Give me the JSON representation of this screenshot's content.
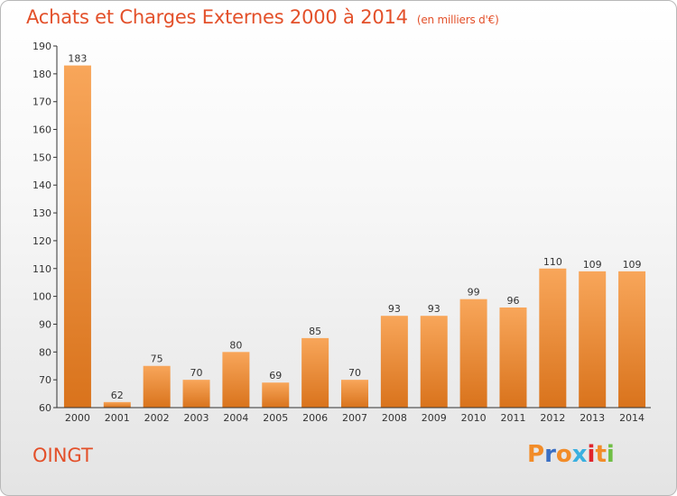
{
  "header": {
    "title": "Achats et Charges Externes 2000 à 2014",
    "unit": "(en milliers d'€)"
  },
  "footer": {
    "commune": "OINGT",
    "logo": [
      "P",
      "r",
      "o",
      "x",
      "i",
      "t",
      "i"
    ]
  },
  "colors": {
    "title": "#e3502a",
    "bar_top": "#f8a65a",
    "bar_bottom": "#d9731c",
    "axis": "#333333",
    "logo": [
      "#f28c28",
      "#3a6fc4",
      "#f28c28",
      "#3ab0e0",
      "#e0242b",
      "#f28c28",
      "#6fbe44"
    ]
  },
  "chart_data": {
    "type": "bar",
    "categories": [
      "2000",
      "2001",
      "2002",
      "2003",
      "2004",
      "2005",
      "2006",
      "2007",
      "2008",
      "2009",
      "2010",
      "2011",
      "2012",
      "2013",
      "2014"
    ],
    "values": [
      183,
      62,
      75,
      70,
      80,
      69,
      85,
      70,
      93,
      93,
      99,
      96,
      110,
      109,
      109
    ],
    "title": "Achats et Charges Externes 2000 à 2014",
    "ylim": [
      60,
      190
    ],
    "yticks": [
      60,
      70,
      80,
      90,
      100,
      110,
      120,
      130,
      140,
      150,
      160,
      170,
      180,
      190
    ],
    "grid": false,
    "data_labels": true
  }
}
